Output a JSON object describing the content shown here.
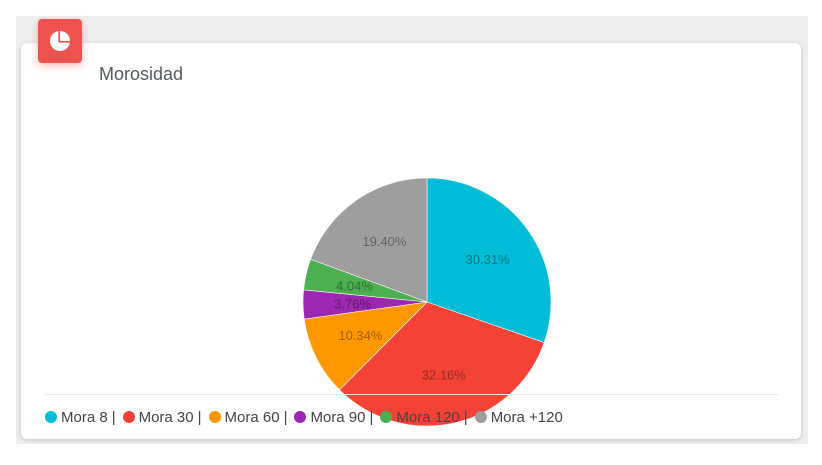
{
  "card": {
    "title": "Morosidad",
    "icon": "pie-chart-icon",
    "icon_color": "#ef5350"
  },
  "chart_data": {
    "type": "pie",
    "title": "Morosidad",
    "start_angle_deg": 0,
    "direction": "clockwise",
    "legend_position": "bottom",
    "slices": [
      {
        "label": "Mora 8",
        "value": 30.31,
        "display": "30.31%",
        "color": "#00bcd4",
        "legend_suffix": " |"
      },
      {
        "label": "Mora 30",
        "value": 32.16,
        "display": "32.16%",
        "color": "#f44336",
        "legend_suffix": " |"
      },
      {
        "label": "Mora 60",
        "value": 10.34,
        "display": "10.34%",
        "color": "#ff9800",
        "legend_suffix": " |"
      },
      {
        "label": "Mora 90",
        "value": 3.76,
        "display": "3.76%",
        "color": "#9c27b0",
        "legend_suffix": " |"
      },
      {
        "label": "Mora 120",
        "value": 4.04,
        "display": "4.04%",
        "color": "#4caf50",
        "legend_suffix": " |"
      },
      {
        "label": "Mora +120",
        "value": 19.4,
        "display": "19.40%",
        "color": "#9e9e9e",
        "legend_suffix": ""
      }
    ]
  }
}
